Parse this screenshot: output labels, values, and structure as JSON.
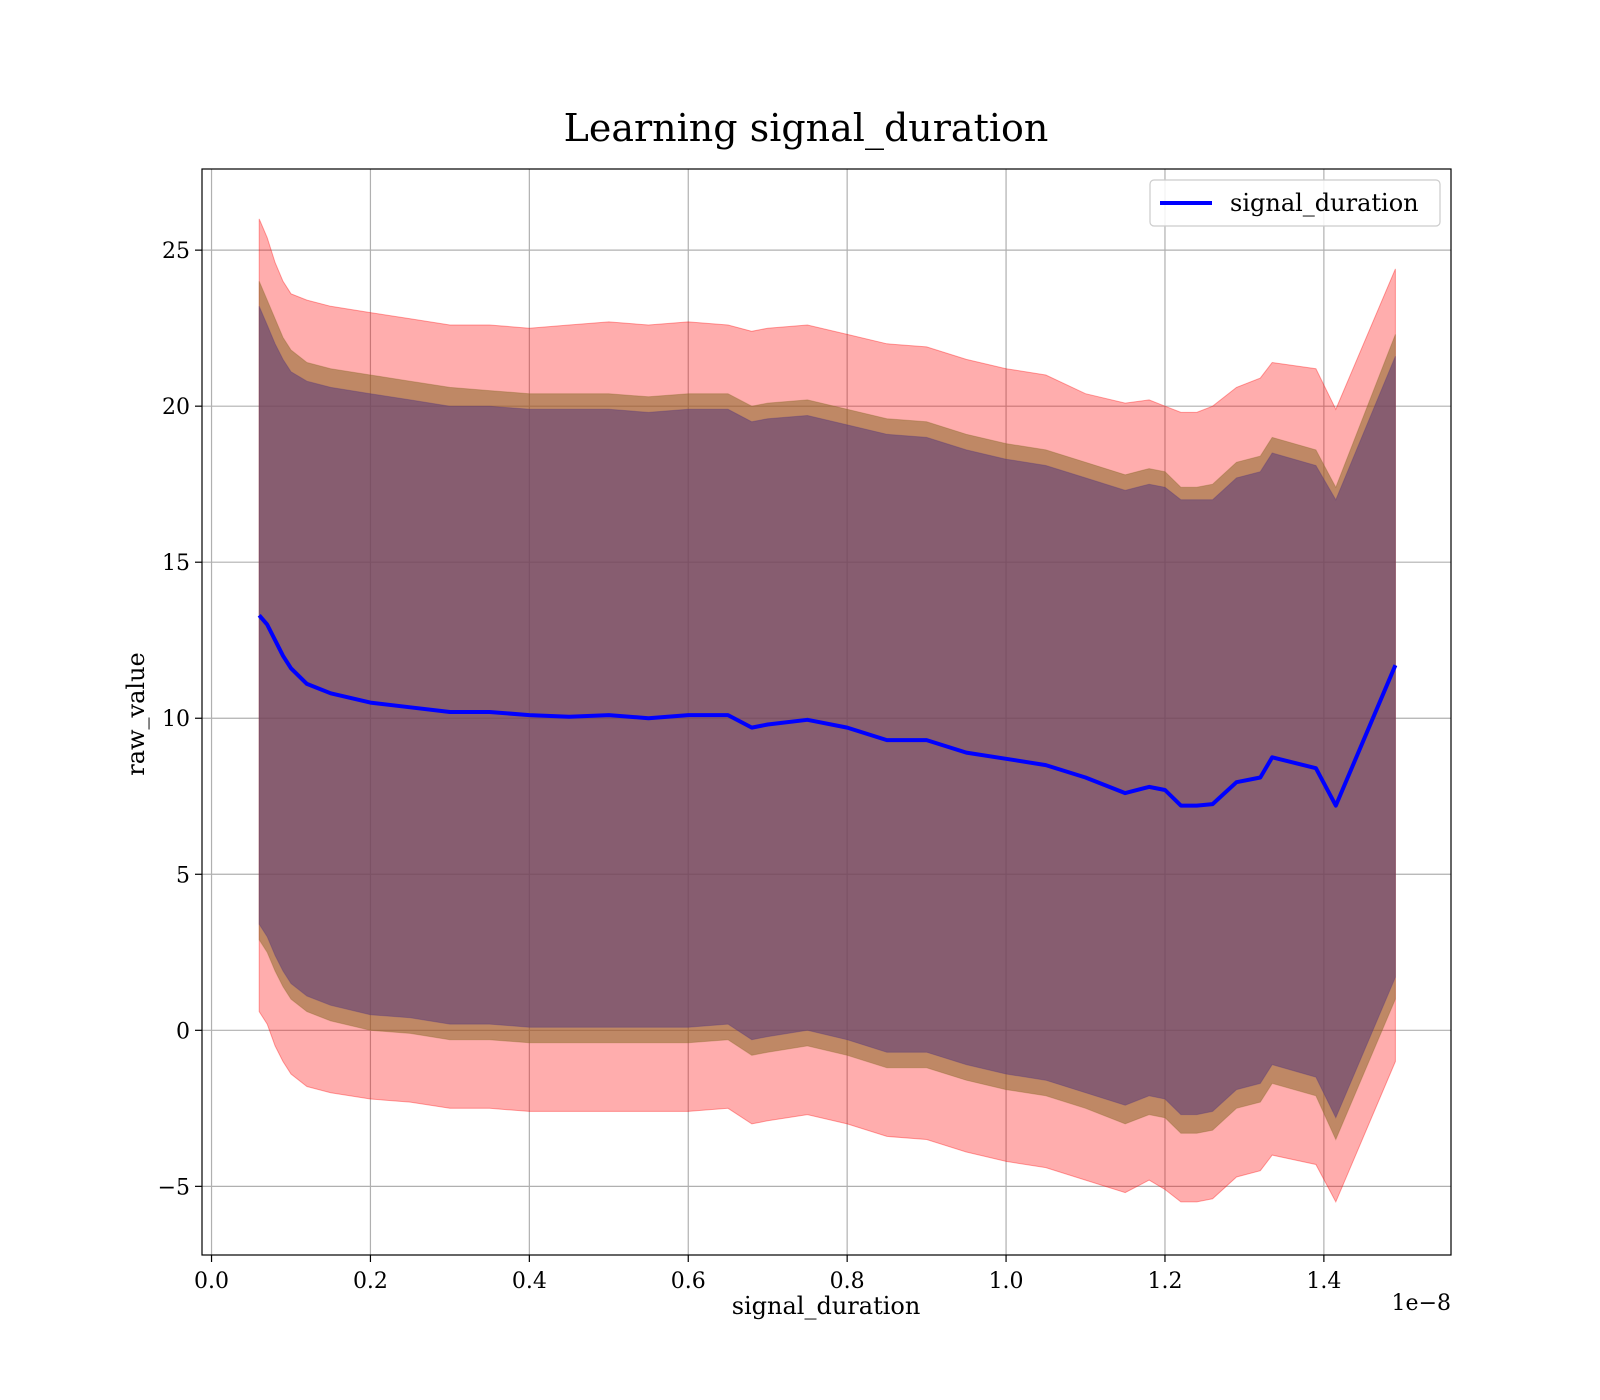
{
  "chart_data": {
    "type": "line",
    "title": "Learning signal_duration",
    "xlabel": "signal_duration",
    "ylabel": "raw_value",
    "x_offset_label": "1e−8",
    "xlim": [
      -0.012,
      1.56
    ],
    "ylim": [
      -7.2,
      27.6
    ],
    "grid": true,
    "legend_position": "top-right",
    "x_ticks": [
      0.0,
      0.2,
      0.4,
      0.6,
      0.8,
      1.0,
      1.2,
      1.4
    ],
    "x_tick_labels": [
      "0.0",
      "0.2",
      "0.4",
      "0.6",
      "0.8",
      "1.0",
      "1.2",
      "1.4"
    ],
    "y_ticks": [
      -5,
      0,
      5,
      10,
      15,
      20,
      25
    ],
    "y_tick_labels": [
      "−5",
      "0",
      "5",
      "10",
      "15",
      "20",
      "25"
    ],
    "colors": {
      "line": "#0000ff",
      "band_outer": "#ff0000",
      "band_middle": "#8b6a2a",
      "band_inner": "#5a3a7a"
    },
    "x": [
      0.06,
      0.07,
      0.08,
      0.09,
      0.1,
      0.12,
      0.15,
      0.2,
      0.25,
      0.3,
      0.35,
      0.4,
      0.45,
      0.5,
      0.55,
      0.6,
      0.65,
      0.68,
      0.7,
      0.75,
      0.8,
      0.85,
      0.9,
      0.95,
      1.0,
      1.05,
      1.1,
      1.15,
      1.18,
      1.2,
      1.22,
      1.24,
      1.26,
      1.29,
      1.32,
      1.335,
      1.39,
      1.415,
      1.49
    ],
    "series": [
      {
        "name": "signal_duration",
        "values": [
          13.3,
          13.0,
          12.5,
          12.0,
          11.6,
          11.1,
          10.8,
          10.5,
          10.35,
          10.2,
          10.2,
          10.1,
          10.05,
          10.1,
          10.0,
          10.1,
          10.1,
          9.7,
          9.8,
          9.95,
          9.7,
          9.3,
          9.3,
          8.9,
          8.7,
          8.5,
          8.1,
          7.6,
          7.8,
          7.7,
          7.2,
          7.2,
          7.25,
          7.95,
          8.1,
          8.75,
          8.4,
          7.2,
          11.7
        ]
      }
    ],
    "bands": [
      {
        "color_key": "band_outer",
        "upper": [
          26.0,
          25.4,
          24.6,
          24.0,
          23.6,
          23.4,
          23.2,
          23.0,
          22.8,
          22.6,
          22.6,
          22.5,
          22.6,
          22.7,
          22.6,
          22.7,
          22.6,
          22.4,
          22.5,
          22.6,
          22.3,
          22.0,
          21.9,
          21.5,
          21.2,
          21.0,
          20.4,
          20.1,
          20.2,
          20.0,
          19.8,
          19.8,
          20.0,
          20.6,
          20.9,
          21.4,
          21.2,
          19.9,
          24.4
        ],
        "lower": [
          0.6,
          0.2,
          -0.5,
          -1.0,
          -1.4,
          -1.8,
          -2.0,
          -2.2,
          -2.3,
          -2.5,
          -2.5,
          -2.6,
          -2.6,
          -2.6,
          -2.6,
          -2.6,
          -2.5,
          -3.0,
          -2.9,
          -2.7,
          -3.0,
          -3.4,
          -3.5,
          -3.9,
          -4.2,
          -4.4,
          -4.8,
          -5.2,
          -4.8,
          -5.1,
          -5.5,
          -5.5,
          -5.4,
          -4.7,
          -4.5,
          -4.0,
          -4.3,
          -5.5,
          -1.0
        ]
      },
      {
        "color_key": "band_middle",
        "upper": [
          24.0,
          23.4,
          22.8,
          22.2,
          21.8,
          21.4,
          21.2,
          21.0,
          20.8,
          20.6,
          20.5,
          20.4,
          20.4,
          20.4,
          20.3,
          20.4,
          20.4,
          20.0,
          20.1,
          20.2,
          19.9,
          19.6,
          19.5,
          19.1,
          18.8,
          18.6,
          18.2,
          17.8,
          18.0,
          17.9,
          17.4,
          17.4,
          17.5,
          18.2,
          18.4,
          19.0,
          18.6,
          17.4,
          22.3
        ],
        "lower": [
          2.9,
          2.5,
          1.9,
          1.4,
          1.0,
          0.6,
          0.3,
          0.0,
          -0.1,
          -0.3,
          -0.3,
          -0.4,
          -0.4,
          -0.4,
          -0.4,
          -0.4,
          -0.3,
          -0.8,
          -0.7,
          -0.5,
          -0.8,
          -1.2,
          -1.2,
          -1.6,
          -1.9,
          -2.1,
          -2.5,
          -3.0,
          -2.7,
          -2.8,
          -3.3,
          -3.3,
          -3.2,
          -2.5,
          -2.3,
          -1.7,
          -2.1,
          -3.5,
          1.0
        ]
      },
      {
        "color_key": "band_inner",
        "upper": [
          23.2,
          22.6,
          22.0,
          21.5,
          21.1,
          20.8,
          20.6,
          20.4,
          20.2,
          20.0,
          20.0,
          19.9,
          19.9,
          19.9,
          19.8,
          19.9,
          19.9,
          19.5,
          19.6,
          19.7,
          19.4,
          19.1,
          19.0,
          18.6,
          18.3,
          18.1,
          17.7,
          17.3,
          17.5,
          17.4,
          17.0,
          17.0,
          17.0,
          17.7,
          17.9,
          18.5,
          18.1,
          17.0,
          21.6
        ],
        "lower": [
          3.4,
          3.0,
          2.4,
          1.9,
          1.5,
          1.1,
          0.8,
          0.5,
          0.4,
          0.2,
          0.2,
          0.1,
          0.1,
          0.1,
          0.1,
          0.1,
          0.2,
          -0.3,
          -0.2,
          0.0,
          -0.3,
          -0.7,
          -0.7,
          -1.1,
          -1.4,
          -1.6,
          -2.0,
          -2.4,
          -2.1,
          -2.2,
          -2.7,
          -2.7,
          -2.6,
          -1.9,
          -1.7,
          -1.1,
          -1.5,
          -2.8,
          1.7
        ]
      }
    ]
  }
}
